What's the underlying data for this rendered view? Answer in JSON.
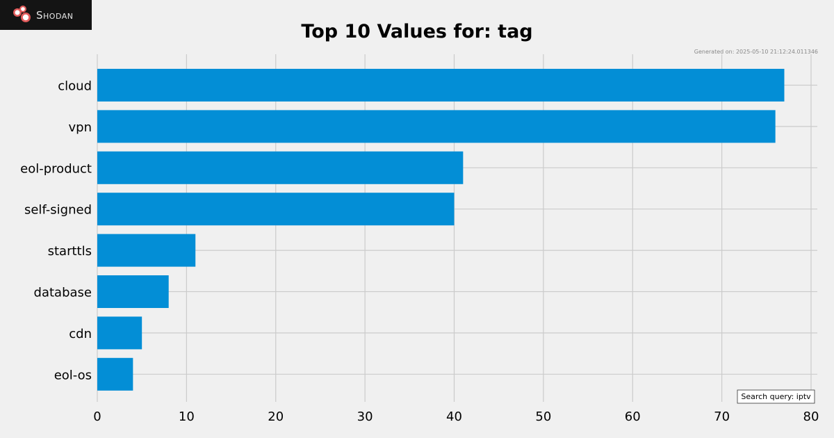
{
  "brand": {
    "name": "Shodan"
  },
  "generated_text": "Generated on: 2025-05-10 21:12:24.011346",
  "query_text": "Search query: iptv",
  "colors": {
    "bar": "#038ed6",
    "background": "#f0f0f0",
    "grid": "#cbcbcb"
  },
  "chart_data": {
    "type": "bar",
    "orientation": "horizontal",
    "title": "Top 10 Values for: tag",
    "xlabel": "",
    "ylabel": "",
    "categories": [
      "cloud",
      "vpn",
      "eol-product",
      "self-signed",
      "starttls",
      "database",
      "cdn",
      "eol-os"
    ],
    "values": [
      77,
      76,
      41,
      40,
      11,
      8,
      5,
      4
    ],
    "xlim": [
      0,
      80
    ],
    "xticks": [
      0,
      10,
      20,
      30,
      40,
      50,
      60,
      70,
      80
    ],
    "grid": true,
    "legend": "none"
  }
}
